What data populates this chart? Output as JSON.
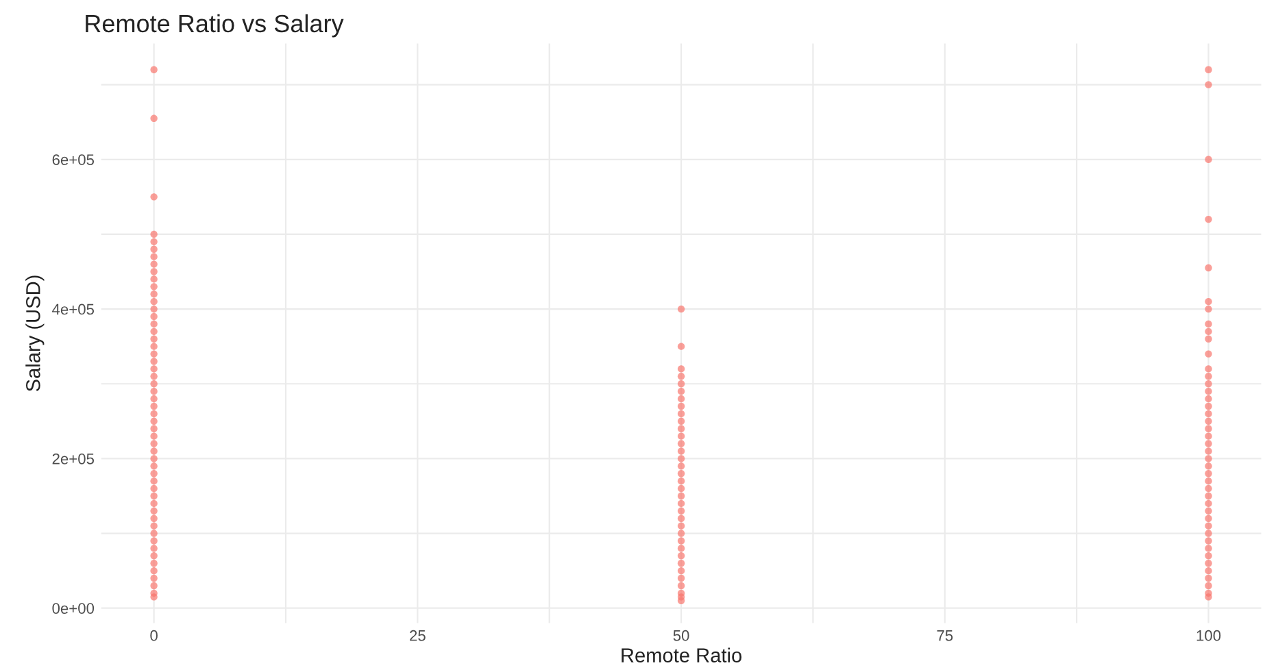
{
  "chart_data": {
    "type": "scatter",
    "title": "Remote Ratio vs Salary",
    "xlabel": "Remote Ratio",
    "ylabel": "Salary (USD)",
    "xlim": [
      -5,
      105
    ],
    "ylim": [
      -20000,
      755000
    ],
    "xticks": [
      0,
      {
        "value": 12.5,
        "label": null
      },
      25,
      {
        "value": 37.5,
        "label": null
      },
      50,
      {
        "value": 62.5,
        "label": null
      },
      75,
      {
        "value": 87.5,
        "label": null
      },
      100
    ],
    "yticks": [
      {
        "value": 0,
        "label": "0e+00"
      },
      {
        "value": 100000,
        "label": null
      },
      {
        "value": 200000,
        "label": "2e+05"
      },
      {
        "value": 300000,
        "label": null
      },
      {
        "value": 400000,
        "label": "4e+05"
      },
      {
        "value": 500000,
        "label": null
      },
      {
        "value": 600000,
        "label": "6e+05"
      },
      {
        "value": 700000,
        "label": null
      }
    ],
    "grid": true,
    "marker": "circle",
    "series": [
      {
        "color": "#f8766d",
        "x": [
          0,
          0,
          0,
          0,
          0,
          0,
          0,
          0,
          0,
          0,
          0,
          0,
          0,
          0,
          0,
          0,
          0,
          0,
          0,
          0,
          0,
          0,
          0,
          0,
          0,
          0,
          0,
          0,
          0,
          0,
          0,
          0,
          0,
          0,
          0,
          0,
          0,
          0,
          0,
          0,
          0,
          0,
          0,
          0,
          0,
          0,
          0,
          0,
          0,
          0,
          0,
          0,
          0
        ],
        "values": [
          720000,
          655000,
          550000,
          500000,
          490000,
          480000,
          470000,
          460000,
          450000,
          440000,
          430000,
          420000,
          410000,
          400000,
          390000,
          380000,
          370000,
          360000,
          350000,
          340000,
          330000,
          320000,
          310000,
          300000,
          290000,
          280000,
          270000,
          260000,
          250000,
          240000,
          230000,
          220000,
          210000,
          200000,
          190000,
          180000,
          170000,
          160000,
          150000,
          140000,
          130000,
          120000,
          110000,
          100000,
          90000,
          80000,
          70000,
          60000,
          50000,
          40000,
          30000,
          20000,
          15000
        ]
      },
      {
        "color": "#f8766d",
        "x": [
          50,
          50,
          50,
          50,
          50,
          50,
          50,
          50,
          50,
          50,
          50,
          50,
          50,
          50,
          50,
          50,
          50,
          50,
          50,
          50,
          50,
          50,
          50,
          50,
          50,
          50,
          50,
          50,
          50,
          50,
          50,
          50,
          50,
          50,
          50
        ],
        "values": [
          400000,
          350000,
          320000,
          310000,
          300000,
          290000,
          280000,
          270000,
          260000,
          250000,
          240000,
          230000,
          220000,
          210000,
          200000,
          190000,
          180000,
          170000,
          160000,
          150000,
          140000,
          130000,
          120000,
          110000,
          100000,
          90000,
          80000,
          70000,
          60000,
          50000,
          40000,
          30000,
          20000,
          15000,
          10000
        ]
      },
      {
        "color": "#f8766d",
        "x": [
          100,
          100,
          100,
          100,
          100,
          100,
          100,
          100,
          100,
          100,
          100,
          100,
          100,
          100,
          100,
          100,
          100,
          100,
          100,
          100,
          100,
          100,
          100,
          100,
          100,
          100,
          100,
          100,
          100,
          100,
          100,
          100,
          100,
          100,
          100,
          100,
          100,
          100,
          100,
          100,
          100,
          100,
          100
        ],
        "values": [
          720000,
          700000,
          600000,
          520000,
          455000,
          410000,
          400000,
          380000,
          370000,
          360000,
          340000,
          320000,
          310000,
          300000,
          290000,
          280000,
          270000,
          260000,
          250000,
          240000,
          230000,
          220000,
          210000,
          200000,
          190000,
          180000,
          170000,
          160000,
          150000,
          140000,
          130000,
          120000,
          110000,
          100000,
          90000,
          80000,
          70000,
          60000,
          50000,
          40000,
          30000,
          20000,
          15000
        ]
      }
    ]
  }
}
